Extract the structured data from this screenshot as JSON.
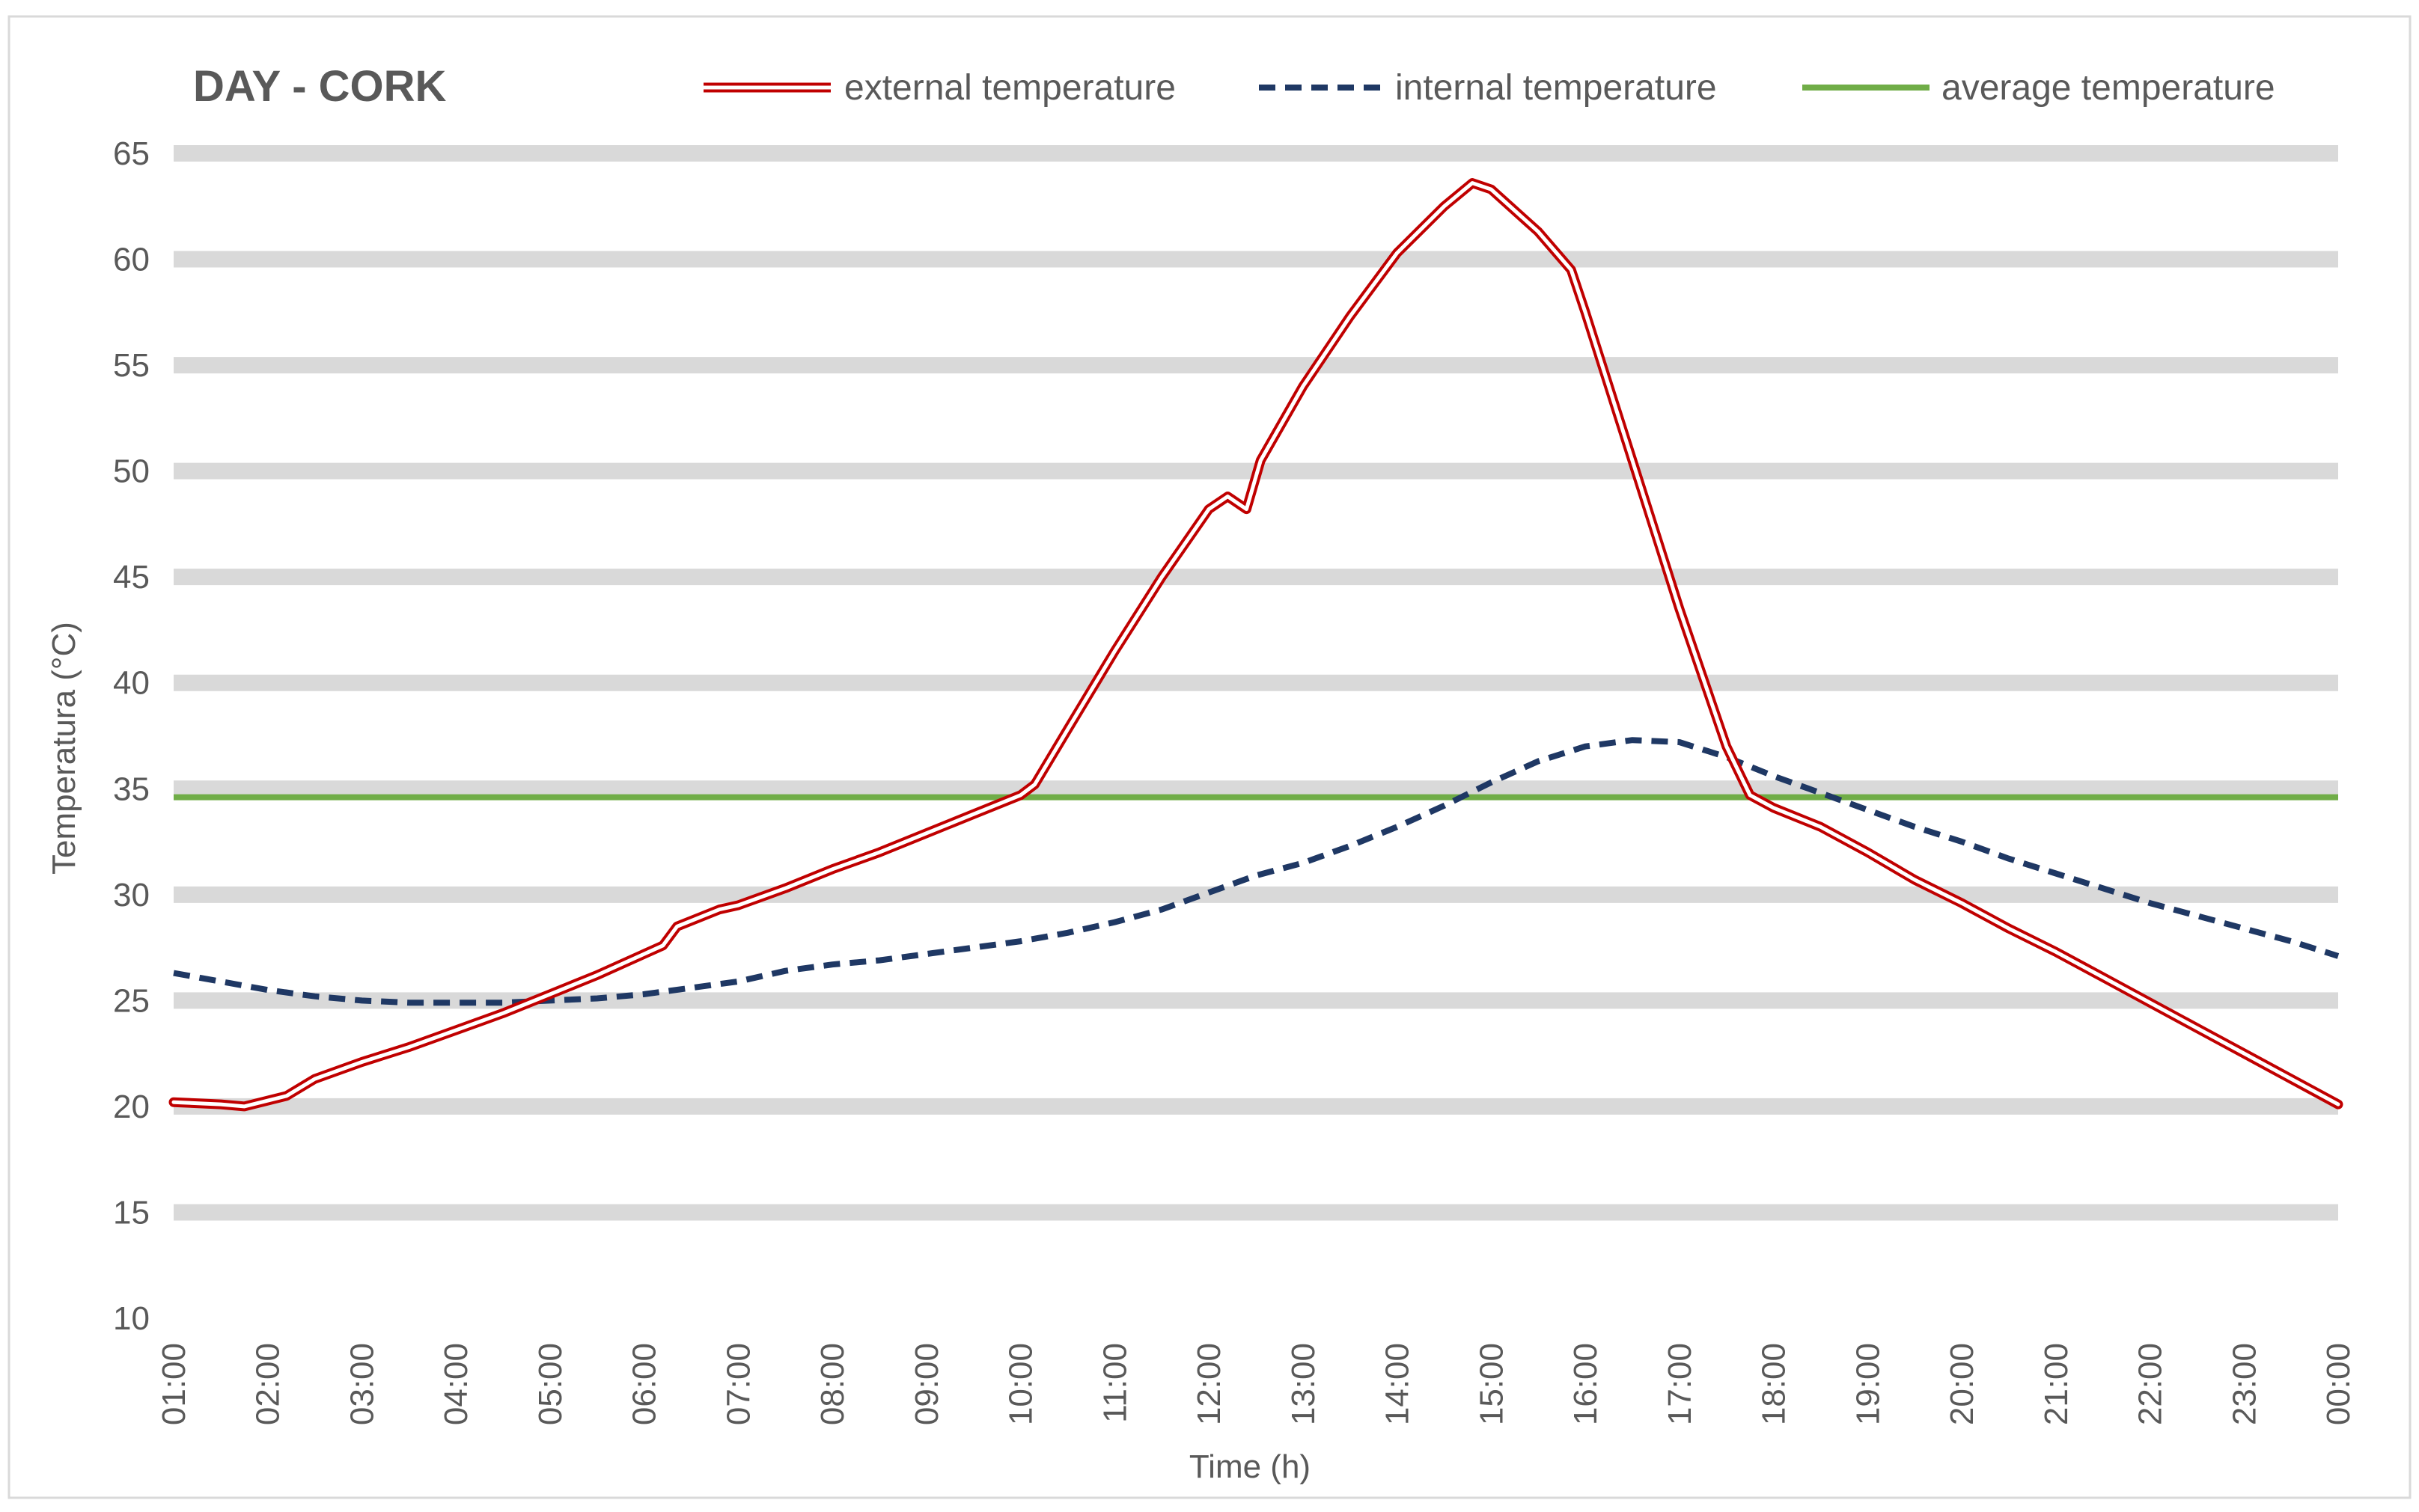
{
  "chart_data": {
    "type": "line",
    "title": "DAY - CORK",
    "xlabel": "Time (h)",
    "ylabel": "Temperatura (°C)",
    "ylim": [
      10,
      65
    ],
    "ytick_step": 5,
    "ytick_labels": [
      "10",
      "15",
      "20",
      "25",
      "30",
      "35",
      "40",
      "45",
      "50",
      "55",
      "60",
      "65"
    ],
    "grid": true,
    "legend_position": "top-right",
    "x_hours": [
      1,
      2,
      3,
      4,
      5,
      6,
      7,
      8,
      9,
      10,
      11,
      12,
      13,
      14,
      15,
      16,
      17,
      18,
      19,
      20,
      21,
      22,
      23,
      24
    ],
    "x_tick_labels": [
      "01:00",
      "02:00",
      "03:00",
      "04:00",
      "05:00",
      "06:00",
      "07:00",
      "08:00",
      "09:00",
      "10:00",
      "11:00",
      "12:00",
      "13:00",
      "14:00",
      "15:00",
      "16:00",
      "17:00",
      "18:00",
      "19:00",
      "20:00",
      "21:00",
      "22:00",
      "23:00",
      "00:00"
    ],
    "series": [
      {
        "name": "external temperature",
        "style": "double",
        "color": "#c00000",
        "points": [
          [
            1.0,
            20.2
          ],
          [
            1.5,
            20.1
          ],
          [
            1.75,
            20.0
          ],
          [
            2.2,
            20.5
          ],
          [
            2.5,
            21.3
          ],
          [
            3.0,
            22.1
          ],
          [
            3.5,
            22.8
          ],
          [
            4.0,
            23.6
          ],
          [
            4.5,
            24.4
          ],
          [
            5.0,
            25.3
          ],
          [
            5.5,
            26.2
          ],
          [
            6.0,
            27.2
          ],
          [
            6.2,
            27.6
          ],
          [
            6.35,
            28.5
          ],
          [
            6.8,
            29.3
          ],
          [
            7.0,
            29.5
          ],
          [
            7.5,
            30.3
          ],
          [
            8.0,
            31.2
          ],
          [
            8.5,
            32.0
          ],
          [
            9.0,
            32.9
          ],
          [
            9.5,
            33.8
          ],
          [
            10.0,
            34.7
          ],
          [
            10.15,
            35.2
          ],
          [
            10.5,
            37.8
          ],
          [
            11.0,
            41.5
          ],
          [
            11.5,
            45.0
          ],
          [
            12.0,
            48.2
          ],
          [
            12.2,
            48.8
          ],
          [
            12.4,
            48.2
          ],
          [
            12.55,
            50.5
          ],
          [
            13.0,
            54.0
          ],
          [
            13.5,
            57.3
          ],
          [
            14.0,
            60.3
          ],
          [
            14.5,
            62.5
          ],
          [
            14.8,
            63.6
          ],
          [
            15.0,
            63.3
          ],
          [
            15.5,
            61.3
          ],
          [
            15.85,
            59.5
          ],
          [
            16.0,
            57.5
          ],
          [
            16.5,
            50.5
          ],
          [
            17.0,
            43.5
          ],
          [
            17.5,
            37.0
          ],
          [
            17.75,
            34.7
          ],
          [
            18.0,
            34.1
          ],
          [
            18.5,
            33.2
          ],
          [
            19.0,
            32.0
          ],
          [
            19.5,
            30.7
          ],
          [
            20.0,
            29.6
          ],
          [
            20.5,
            28.4
          ],
          [
            21.0,
            27.3
          ],
          [
            21.5,
            26.1
          ],
          [
            22.0,
            24.9
          ],
          [
            22.5,
            23.7
          ],
          [
            23.0,
            22.5
          ],
          [
            23.5,
            21.3
          ],
          [
            24.0,
            20.1
          ]
        ]
      },
      {
        "name": "internal temperature",
        "style": "dashed",
        "color": "#1f3864",
        "points": [
          [
            1.0,
            26.3
          ],
          [
            1.5,
            25.9
          ],
          [
            2.0,
            25.5
          ],
          [
            2.5,
            25.2
          ],
          [
            3.0,
            25.0
          ],
          [
            3.5,
            24.9
          ],
          [
            4.0,
            24.9
          ],
          [
            4.5,
            24.9
          ],
          [
            5.0,
            25.0
          ],
          [
            5.5,
            25.1
          ],
          [
            6.0,
            25.3
          ],
          [
            6.5,
            25.6
          ],
          [
            7.0,
            25.9
          ],
          [
            7.5,
            26.4
          ],
          [
            8.0,
            26.7
          ],
          [
            8.5,
            26.9
          ],
          [
            9.0,
            27.2
          ],
          [
            9.5,
            27.5
          ],
          [
            10.0,
            27.8
          ],
          [
            10.5,
            28.2
          ],
          [
            11.0,
            28.7
          ],
          [
            11.5,
            29.3
          ],
          [
            12.0,
            30.1
          ],
          [
            12.5,
            30.9
          ],
          [
            13.0,
            31.5
          ],
          [
            13.5,
            32.3
          ],
          [
            14.0,
            33.2
          ],
          [
            14.5,
            34.2
          ],
          [
            15.0,
            35.3
          ],
          [
            15.5,
            36.3
          ],
          [
            16.0,
            37.0
          ],
          [
            16.5,
            37.3
          ],
          [
            17.0,
            37.2
          ],
          [
            17.5,
            36.5
          ],
          [
            18.0,
            35.6
          ],
          [
            18.5,
            34.8
          ],
          [
            19.0,
            34.0
          ],
          [
            19.5,
            33.2
          ],
          [
            20.0,
            32.5
          ],
          [
            20.5,
            31.7
          ],
          [
            21.0,
            31.0
          ],
          [
            21.5,
            30.3
          ],
          [
            22.0,
            29.6
          ],
          [
            22.5,
            29.0
          ],
          [
            23.0,
            28.4
          ],
          [
            23.5,
            27.8
          ],
          [
            24.0,
            27.1
          ]
        ]
      },
      {
        "name": "average temperature",
        "style": "solid",
        "color": "#70ad47",
        "points": [
          [
            1.0,
            34.6
          ],
          [
            24.0,
            34.6
          ]
        ]
      }
    ]
  }
}
